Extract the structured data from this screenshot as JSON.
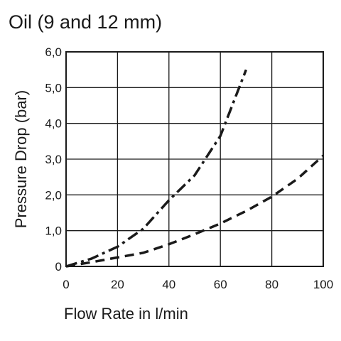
{
  "chart_data": {
    "type": "line",
    "title": "Oil (9 and 12 mm)",
    "xlabel": "Flow Rate in l/min",
    "ylabel": "Pressure Drop (bar)",
    "xlim": [
      0,
      100
    ],
    "ylim": [
      0,
      6
    ],
    "x_ticks": [
      "0",
      "20",
      "40",
      "60",
      "80",
      "100"
    ],
    "y_ticks": [
      "0",
      "1,0",
      "2,0",
      "3,0",
      "4,0",
      "5,0",
      "6,0"
    ],
    "grid": true,
    "legend": "none",
    "series": [
      {
        "style": "dash-dot",
        "x": [
          0,
          10,
          20,
          30,
          40,
          50,
          60,
          70
        ],
        "y": [
          0,
          0.22,
          0.55,
          1.05,
          1.85,
          2.55,
          3.65,
          5.5
        ]
      },
      {
        "style": "dashed",
        "x": [
          0,
          10,
          20,
          30,
          40,
          50,
          60,
          70,
          80,
          90,
          100
        ],
        "y": [
          0,
          0.12,
          0.25,
          0.38,
          0.62,
          0.9,
          1.2,
          1.55,
          1.95,
          2.45,
          3.1
        ]
      }
    ]
  },
  "colors": {
    "line": "#1a1a1a",
    "grid": "#1a1a1a",
    "background": "#ffffff"
  }
}
